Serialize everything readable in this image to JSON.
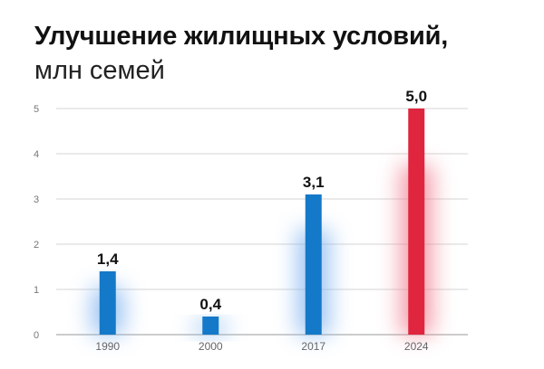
{
  "header": {
    "title": "Улучшение жилищных условий,",
    "subtitle": "млн семей"
  },
  "chart_data": {
    "type": "bar",
    "title": "Улучшение жилищных условий,",
    "subtitle": "млн семей",
    "xlabel": "",
    "ylabel": "",
    "categories": [
      "1990",
      "2000",
      "2017",
      "2024"
    ],
    "values": [
      1.4,
      0.4,
      3.1,
      5.0
    ],
    "data_labels": [
      "1,4",
      "0,4",
      "3,1",
      "5,0"
    ],
    "ylim": [
      0,
      5
    ],
    "yticks": [
      0,
      1,
      2,
      3,
      4,
      5
    ],
    "ytick_labels": [
      "0",
      "1",
      "2",
      "3",
      "4",
      "5"
    ],
    "grid": true,
    "legend": "none",
    "colors": [
      "#1479c8",
      "#1479c8",
      "#1479c8",
      "#e0253f"
    ],
    "glow_colors": [
      "#7fb2f0",
      "#7fb2f0",
      "#7fb2f0",
      "#f07f8f"
    ]
  }
}
